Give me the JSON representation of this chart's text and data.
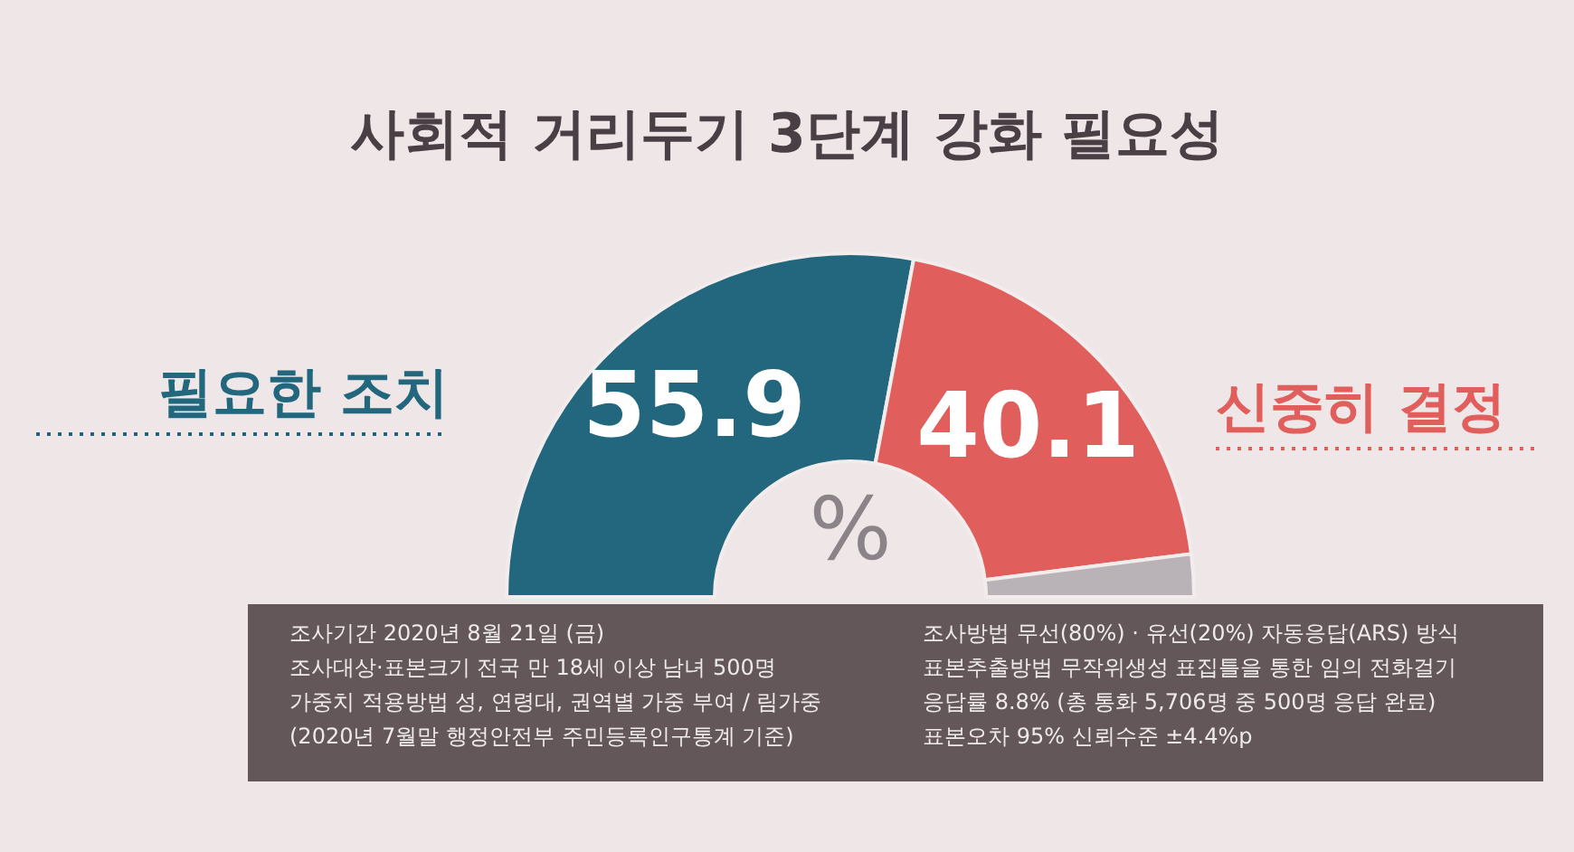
{
  "chart_data": {
    "type": "donut",
    "title": "사회적 거리두기 3단계 강화 필요성",
    "categories": [
      "필요한 조치",
      "신중히 결정",
      null
    ],
    "values": [
      55.9,
      40.1,
      4.0
    ],
    "colors": [
      "#22677d",
      "#e05f5c",
      "#b9b3b8"
    ],
    "value_labels": [
      "55.9",
      "40.1",
      null
    ],
    "annotations": [
      "%",
      "조사기간 2020년 8월 21일 (금)",
      "조사대상·표본크기 전국 만 18세 이상 남녀 500명",
      "가중치 적용방법 성, 연령대, 권역별 가중 부여 / 림가중",
      "(2020년 7월말 행정안전부 주민등록인구통계 기준)",
      "조사방법 무선(80%) · 유선(20%) 자동응답(ARS) 방식",
      "표본추출방법 무작위생성 표집틀을 통한 임의 전화걸기",
      "응답률 8.8% (총 통화 5,706명 중 500명 응답 완료)",
      "표본오차 95% 신뢰수준 ±4.4%p"
    ]
  }
}
